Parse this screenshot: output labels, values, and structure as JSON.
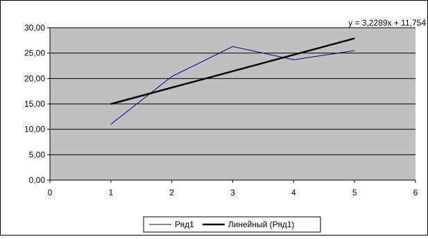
{
  "chart_data": {
    "type": "line",
    "title": "",
    "xlabel": "",
    "ylabel": "",
    "xlim": [
      0,
      6
    ],
    "ylim": [
      0,
      30
    ],
    "x_ticks": [
      "0",
      "1",
      "2",
      "3",
      "4",
      "5",
      "6"
    ],
    "y_ticks": [
      "0,00",
      "5,00",
      "10,00",
      "15,00",
      "20,00",
      "25,00",
      "30,00"
    ],
    "grid": "horizontal",
    "legend_position": "bottom",
    "plot_background": "#C0C0C0",
    "series": [
      {
        "name": "Ряд1",
        "color": "#000080",
        "x": [
          1,
          2,
          3,
          4,
          5
        ],
        "values": [
          11.0,
          20.4,
          26.3,
          23.7,
          25.5
        ]
      },
      {
        "name": "Линейный (Ряд1)",
        "color": "#000000",
        "type": "trendline",
        "slope": 3.2289,
        "intercept": 11.754,
        "x": [
          1,
          5
        ]
      }
    ],
    "annotation": "y = 3,2289x + 11,754"
  }
}
